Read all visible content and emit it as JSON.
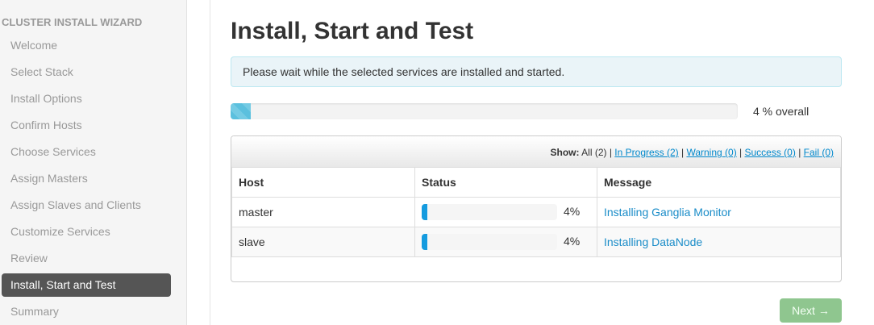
{
  "sidebar": {
    "title": "CLUSTER INSTALL WIZARD",
    "items": [
      "Welcome",
      "Select Stack",
      "Install Options",
      "Confirm Hosts",
      "Choose Services",
      "Assign Masters",
      "Assign Slaves and Clients",
      "Customize Services",
      "Review",
      "Install, Start and Test",
      "Summary"
    ],
    "active_index": 9
  },
  "main": {
    "title": "Install, Start and Test",
    "alert": "Please wait while the selected services are installed and started.",
    "overall_progress": 4,
    "overall_label": "4 % overall",
    "filter": {
      "show_label": "Show:",
      "all": "All (2)",
      "in_progress": "In Progress (2)",
      "warning": "Warning (0)",
      "success": "Success (0)",
      "fail": "Fail (0)"
    },
    "columns": [
      "Host",
      "Status",
      "Message"
    ],
    "rows": [
      {
        "host": "master",
        "progress": 4,
        "pct": "4%",
        "message": "Installing Ganglia Monitor"
      },
      {
        "host": "slave",
        "progress": 4,
        "pct": "4%",
        "message": "Installing DataNode"
      }
    ],
    "next_label": "Next →"
  },
  "colors": {
    "active": "#555555",
    "link": "#0088cc",
    "next": "#8fc68f"
  }
}
